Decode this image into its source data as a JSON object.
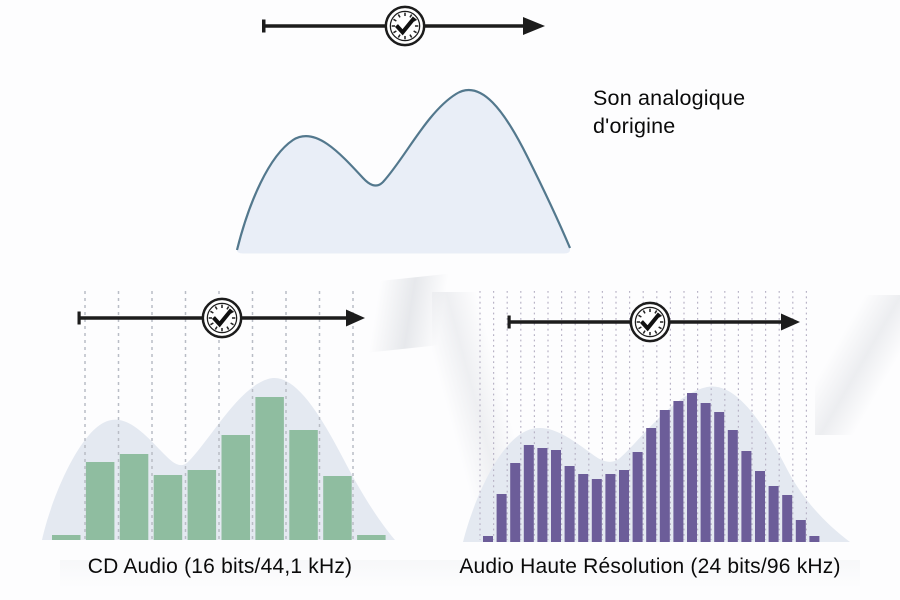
{
  "analog_section": {
    "label": "Son analogique d'origine"
  },
  "chart_data": [
    {
      "type": "bar",
      "title": "CD Audio (16 bits/44,1 kHz)",
      "sample_count": 10,
      "gridline_count": 9,
      "values": [
        5,
        78,
        86,
        65,
        70,
        105,
        143,
        110,
        64,
        5
      ],
      "value_unit": "relative amplitude (px)",
      "bar_color": "#8fbda0",
      "grid_color": "#b9bdc6",
      "wave_fill": "#e4e9f1"
    },
    {
      "type": "bar",
      "title": "Audio Haute Résolution (24 bits/96 kHz)",
      "sample_count": 25,
      "gridline_count": 25,
      "values": [
        6,
        48,
        79,
        97,
        94,
        92,
        76,
        68,
        63,
        68,
        72,
        90,
        114,
        132,
        141,
        149,
        139,
        130,
        112,
        91,
        71,
        56,
        47,
        22,
        6
      ],
      "value_unit": "relative amplitude (px)",
      "bar_color": "#6c5d99",
      "grid_color": "#b8b3c6",
      "wave_fill": "#e4e9f1"
    }
  ],
  "colors": {
    "arrow": "#1c1c1c",
    "analog_wave_fill": "#e9eef7",
    "analog_wave_stroke": "#53788d",
    "text": "#0a0a0a",
    "background": "#fdfdfe"
  },
  "icons": {
    "timeline_icon": "clock-check-icon"
  }
}
